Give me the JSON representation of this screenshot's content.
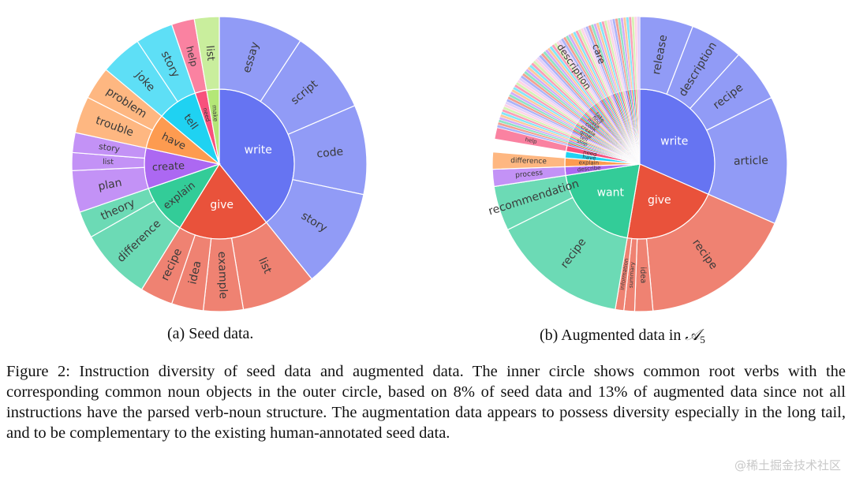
{
  "charts": [
    {
      "type": "sunburst",
      "caption": "(a) Seed data.",
      "inner": [
        {
          "label": "write",
          "value": 36,
          "color": "#6674f2"
        },
        {
          "label": "give",
          "value": 18,
          "color": "#e9523b"
        },
        {
          "label": "explain",
          "value": 10,
          "color": "#33cc98"
        },
        {
          "label": "create",
          "value": 8,
          "color": "#ac68f2"
        },
        {
          "label": "have",
          "value": 7,
          "color": "#fd9b50"
        },
        {
          "label": "tell",
          "value": 8,
          "color": "#1fd2f2"
        },
        {
          "label": "need",
          "value": 2.3,
          "color": "#f8517c"
        },
        {
          "label": "make",
          "value": 2.5,
          "color": "#b4e777"
        }
      ],
      "outer": [
        {
          "label": "essay",
          "parent": "write",
          "value": 8.5
        },
        {
          "label": "script",
          "parent": "write",
          "value": 8.5
        },
        {
          "label": "code",
          "parent": "write",
          "value": 9
        },
        {
          "label": "story",
          "parent": "write",
          "value": 10
        },
        {
          "label": "list",
          "parent": "give",
          "value": 7.5
        },
        {
          "label": "example",
          "parent": "give",
          "value": 4
        },
        {
          "label": "idea",
          "parent": "give",
          "value": 3.2
        },
        {
          "label": "recipe",
          "parent": "give",
          "value": 3.3
        },
        {
          "label": "difference",
          "parent": "explain",
          "value": 7.3
        },
        {
          "label": "theory",
          "parent": "explain",
          "value": 2.7
        },
        {
          "label": "plan",
          "parent": "create",
          "value": 4.2
        },
        {
          "label": "list",
          "parent": "create",
          "value": 1.8
        },
        {
          "label": "story",
          "parent": "create",
          "value": 2
        },
        {
          "label": "trouble",
          "parent": "have",
          "value": 3.7
        },
        {
          "label": "problem",
          "parent": "have",
          "value": 3.3
        },
        {
          "label": "joke",
          "parent": "tell",
          "value": 4.2
        },
        {
          "label": "story",
          "parent": "tell",
          "value": 3.8
        },
        {
          "label": "help",
          "parent": "need",
          "value": 2.3
        },
        {
          "label": "list",
          "parent": "make",
          "value": 2.5
        }
      ],
      "tail": []
    },
    {
      "type": "sunburst",
      "caption_prefix": "(b) Augmented data in ",
      "caption_symbol": "𝒜",
      "caption_subscript": "5",
      "inner": [
        {
          "label": "write",
          "value": 27,
          "color": "#6674f2"
        },
        {
          "label": "give",
          "value": 18,
          "color": "#e9523b"
        },
        {
          "label": "want",
          "value": 17,
          "color": "#33cc98"
        },
        {
          "label": "describe",
          "value": 1.6,
          "color": "#ac68f2"
        },
        {
          "label": "explain",
          "value": 1.6,
          "color": "#fd9b50"
        },
        {
          "label": "have",
          "value": 1.2,
          "color": "#1fd2f2"
        },
        {
          "label": "need",
          "value": 1.1,
          "color": "#f8517c"
        }
      ],
      "outer": [
        {
          "label": "release",
          "parent": "write",
          "value": 5
        },
        {
          "label": "description",
          "parent": "write",
          "value": 5
        },
        {
          "label": "recipe",
          "parent": "write",
          "value": 5
        },
        {
          "label": "article",
          "parent": "write",
          "value": 12
        },
        {
          "label": "recipe",
          "parent": "give",
          "value": 14.5
        },
        {
          "label": "idea",
          "parent": "give",
          "value": 1.7
        },
        {
          "label": "summary",
          "parent": "give",
          "value": 1
        },
        {
          "label": "information",
          "parent": "give",
          "value": 0.8
        },
        {
          "label": "recipe",
          "parent": "want",
          "value": 12.8
        },
        {
          "label": "recommendation",
          "parent": "want",
          "value": 4.2
        },
        {
          "label": "process",
          "parent": "describe",
          "value": 1.6
        },
        {
          "label": "difference",
          "parent": "explain",
          "value": 1.6
        },
        {
          "label": "help",
          "parent": "need",
          "value": 1.1
        },
        {
          "label": "description",
          "parent": "",
          "value": 3.8
        },
        {
          "label": "care",
          "parent": "",
          "value": 2.5
        }
      ],
      "tail": [
        "stop",
        "tell",
        "grow",
        "create",
        "cook",
        "make",
        "find",
        "take"
      ]
    }
  ],
  "figure_caption": "Figure 2: Instruction diversity of seed data and augmented data. The inner circle shows common root verbs with the corresponding common noun objects in the outer circle, based on 8% of seed data and 13% of augmented data since not all instructions have the parsed verb-noun structure. The augmentation data appears to possess diversity especially in the long tail, and to be complementary to the existing human-annotated seed data.",
  "watermark": "@稀土掘金技术社区"
}
